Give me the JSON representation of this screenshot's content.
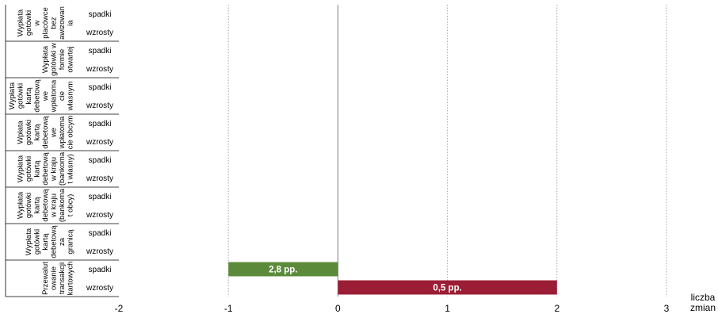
{
  "chart_data": {
    "type": "bar",
    "orientation": "horizontal",
    "title": "",
    "xlabel": "",
    "ylabel": "",
    "x_unit_label": [
      "liczba",
      "zmian"
    ],
    "xlim": [
      -2,
      3
    ],
    "x_ticks": [
      "-2",
      "-1",
      "0",
      "1",
      "2",
      "3"
    ],
    "grid": "vertical dotted",
    "legend": "none",
    "sub_categories": [
      "spadki",
      "wzrosty"
    ],
    "categories": [
      {
        "label": [
          "Wypłata",
          "gotówki",
          "w",
          "placówce",
          "bez",
          "awizowan",
          "ia"
        ]
      },
      {
        "label": [
          "Wypłata",
          "gotówki w",
          "formie",
          "otwartej"
        ]
      },
      {
        "label": [
          "Wypłata",
          "gotówki",
          "kartą",
          "debetową",
          "we",
          "wpłatoma",
          "cie",
          "własnym"
        ]
      },
      {
        "label": [
          "Wpłata",
          "gotówki",
          "kartą",
          "debetową",
          "we",
          "wpłatoma",
          "cie obcym"
        ]
      },
      {
        "label": [
          "Wypłata",
          "gotówki",
          "kartą",
          "debetową",
          "w kraju",
          "(bankoma",
          "t własny)"
        ]
      },
      {
        "label": [
          "Wypłata",
          "gotówki",
          "kartą",
          "debetową",
          "w kraju",
          "(bankoma",
          "t obcy)"
        ]
      },
      {
        "label": [
          "Wypłata",
          "gotówki",
          "kartą",
          "debetową",
          "za",
          "granicą"
        ]
      },
      {
        "label": [
          "Przewalut",
          "owanie",
          "transakcji",
          "kartowych"
        ]
      }
    ],
    "series": [
      {
        "name": "spadki",
        "color": "#5b8a3a",
        "values": [
          null,
          null,
          null,
          null,
          null,
          null,
          null,
          -1
        ],
        "data_labels": [
          "",
          "",
          "",
          "",
          "",
          "",
          "",
          "2,8 pp."
        ]
      },
      {
        "name": "wzrosty",
        "color": "#9b1d35",
        "values": [
          null,
          null,
          null,
          null,
          null,
          null,
          null,
          2
        ],
        "data_labels": [
          "",
          "",
          "",
          "",
          "",
          "",
          "",
          "0,5 pp."
        ]
      }
    ]
  }
}
